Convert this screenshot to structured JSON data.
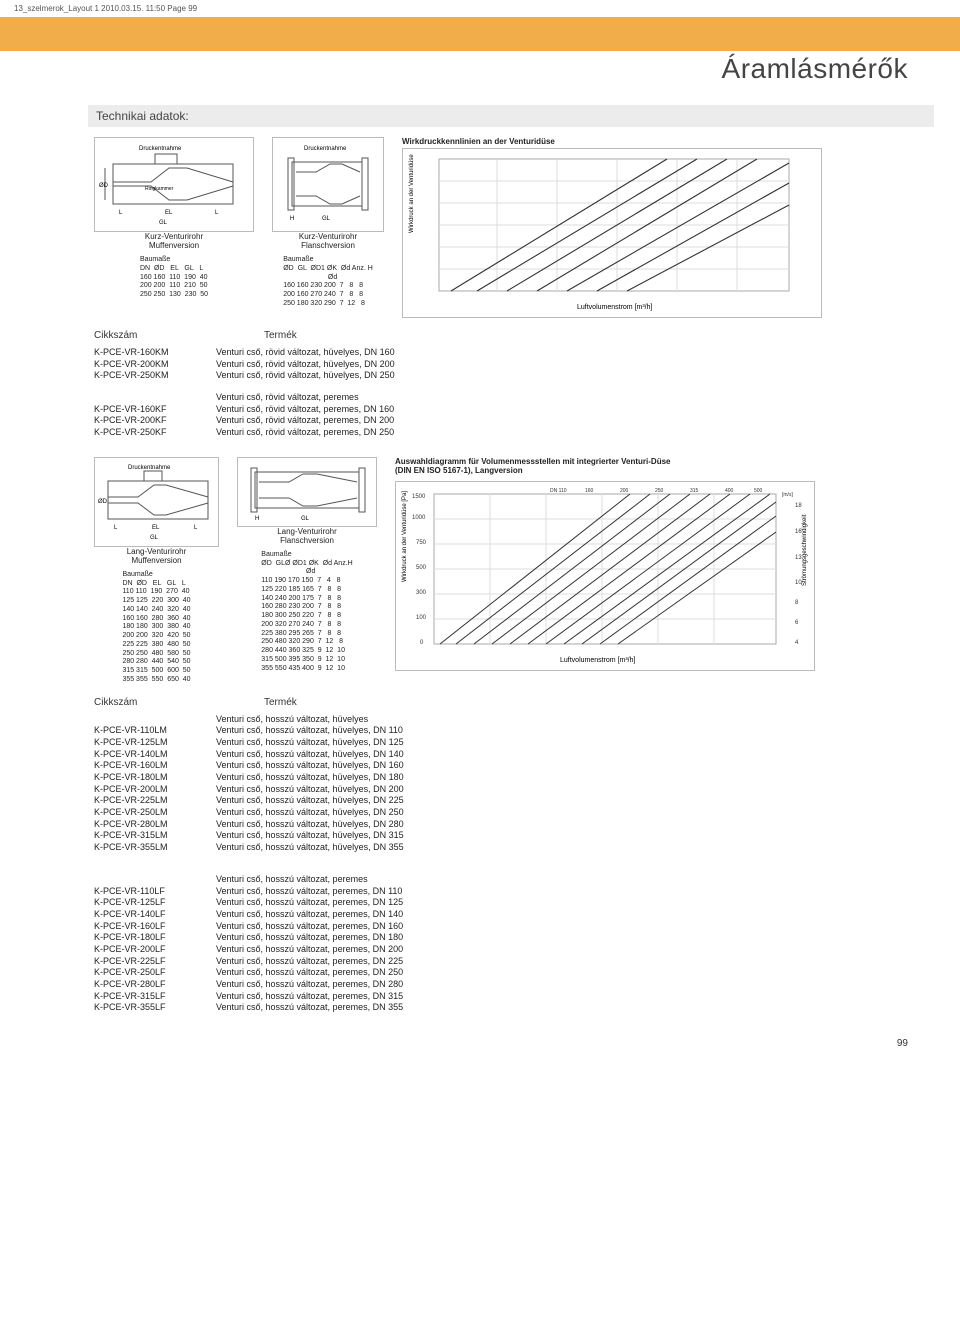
{
  "header_line": "13_szelmerok_Layout 1  2010.03.15.  11:50  Page 99",
  "page_title": "Áramlásmérők",
  "section_heading": "Technikai adatok:",
  "chart1_title": "Wirkdruckkennlinien an der Venturidüse",
  "kurz_muff": {
    "title": "Kurz-Venturirohr\nMuffenversion",
    "head": "Baumaße\nDN  ØD   EL   GL   L",
    "rows": [
      "160 160  110  190  40",
      "200 200  110  210  50",
      "250 250  130  230  50"
    ]
  },
  "kurz_flansch": {
    "title": "Kurz-Venturirohr\nFlanschversion",
    "head": "Baumaße\nØD  GL  ØD1 ØK  Ød Anz. H\n                       Ød",
    "rows": [
      "160 160 230 200  7   8   8",
      "200 160 270 240  7   8   8",
      "250 180 320 290  7  12   8"
    ]
  },
  "cikk_headers": {
    "a": "Cikkszám",
    "b": "Termék"
  },
  "list1": [
    [
      "K-PCE-VR-160KM",
      "Venturi cső, rövid változat, hüvelyes, DN 160"
    ],
    [
      "K-PCE-VR-200KM",
      "Venturi cső, rövid változat, hüvelyes, DN 200"
    ],
    [
      "K-PCE-VR-250KM",
      "Venturi cső, rövid változat, hüvelyes, DN 250"
    ]
  ],
  "list1b_title": "Venturi cső, rövid változat, peremes",
  "list1b": [
    [
      "K-PCE-VR-160KF",
      "Venturi cső, rövid változat, peremes, DN 160"
    ],
    [
      "K-PCE-VR-200KF",
      "Venturi cső, rövid változat, peremes, DN 200"
    ],
    [
      "K-PCE-VR-250KF",
      "Venturi cső, rövid változat, peremes, DN 250"
    ]
  ],
  "chart2_title": "Auswahldiagramm für Volumenmessstellen mit integrierter Venturi-Düse\n(DIN EN ISO 5167-1), Langversion",
  "lang_muff": {
    "title": "Lang-Venturirohr\nMuffenversion",
    "head": "Baumaße\nDN  ØD   EL   GL   L",
    "rows": [
      "110 110  190  270  40",
      "125 125  220  300  40",
      "140 140  240  320  40",
      "160 160  280  360  40",
      "180 180  300  380  40",
      "200 200  320  420  50",
      "225 225  380  480  50",
      "250 250  480  580  50",
      "280 280  440  540  50",
      "315 315  500  600  50",
      "355 355  550  650  40"
    ]
  },
  "lang_flansch": {
    "title": "Lang-Venturirohr\nFlanschversion",
    "head": "Baumaße\nØD  GLØ ØD1 ØK  Ød Anz.H\n                       Ød",
    "rows": [
      "110 190 170 150  7   4   8",
      "125 220 185 165  7   8   8",
      "140 240 200 175  7   8   8",
      "160 280 230 200  7   8   8",
      "180 300 250 220  7   8   8",
      "200 320 270 240  7   8   8",
      "225 380 295 265  7   8   8",
      "250 480 320 290  7  12   8",
      "280 440 360 325  9  12  10",
      "315 500 395 350  9  12  10",
      "355 550 435 400  9  12  10"
    ]
  },
  "list2_title": "Venturi cső, hosszú változat, hüvelyes",
  "list2": [
    [
      "K-PCE-VR-110LM",
      "Venturi cső, hosszú változat, hüvelyes, DN 110"
    ],
    [
      "K-PCE-VR-125LM",
      "Venturi cső, hosszú változat, hüvelyes, DN 125"
    ],
    [
      "K-PCE-VR-140LM",
      "Venturi cső, hosszú változat, hüvelyes, DN 140"
    ],
    [
      "K-PCE-VR-160LM",
      "Venturi cső, hosszú változat, hüvelyes, DN 160"
    ],
    [
      "K-PCE-VR-180LM",
      "Venturi cső, hosszú változat, hüvelyes, DN 180"
    ],
    [
      "K-PCE-VR-200LM",
      "Venturi cső, hosszú változat, hüvelyes, DN 200"
    ],
    [
      "K-PCE-VR-225LM",
      "Venturi cső, hosszú változat, hüvelyes, DN 225"
    ],
    [
      "K-PCE-VR-250LM",
      "Venturi cső, hosszú változat, hüvelyes, DN 250"
    ],
    [
      "K-PCE-VR-280LM",
      "Venturi cső, hosszú változat, hüvelyes, DN 280"
    ],
    [
      "K-PCE-VR-315LM",
      "Venturi cső, hosszú változat, hüvelyes, DN 315"
    ],
    [
      "K-PCE-VR-355LM",
      "Venturi cső, hosszú változat, hüvelyes, DN 355"
    ]
  ],
  "list3_title": "Venturi cső, hosszú változat, peremes",
  "list3": [
    [
      "K-PCE-VR-110LF",
      "Venturi cső, hosszú változat, peremes, DN 110"
    ],
    [
      "K-PCE-VR-125LF",
      "Venturi cső, hosszú változat, peremes, DN 125"
    ],
    [
      "K-PCE-VR-140LF",
      "Venturi cső, hosszú változat, peremes, DN 140"
    ],
    [
      "K-PCE-VR-160LF",
      "Venturi cső, hosszú változat, peremes, DN 160"
    ],
    [
      "K-PCE-VR-180LF",
      "Venturi cső, hosszú változat, peremes, DN 180"
    ],
    [
      "K-PCE-VR-200LF",
      "Venturi cső, hosszú változat, peremes, DN 200"
    ],
    [
      "K-PCE-VR-225LF",
      "Venturi cső, hosszú változat, peremes, DN 225"
    ],
    [
      "K-PCE-VR-250LF",
      "Venturi cső, hosszú változat, peremes, DN 250"
    ],
    [
      "K-PCE-VR-280LF",
      "Venturi cső, hosszú változat, peremes, DN 280"
    ],
    [
      "K-PCE-VR-315LF",
      "Venturi cső, hosszú változat, peremes, DN 315"
    ],
    [
      "K-PCE-VR-355LF",
      "Venturi cső, hosszú változat, peremes, DN 355"
    ]
  ],
  "footer_page": "99",
  "colors": {
    "orange": "#f2ad4b",
    "grey_box": "#ececec",
    "border": "#bbbbbb",
    "grid": "#dddddd",
    "text": "#333333"
  },
  "chart_styles": {
    "log_grid": true,
    "xlabel": "Luftvolumenstrom [m³/h]",
    "ylabel": "Wirkdruck an der Venturidüse [Pa]",
    "yticks1": [
      "1",
      "2",
      "4",
      "6",
      "10",
      "20",
      "40",
      "60",
      "100",
      "200",
      "400",
      "600"
    ],
    "line_color": "#333333",
    "grid_color": "#dddddd",
    "bg_color": "#ffffff"
  }
}
